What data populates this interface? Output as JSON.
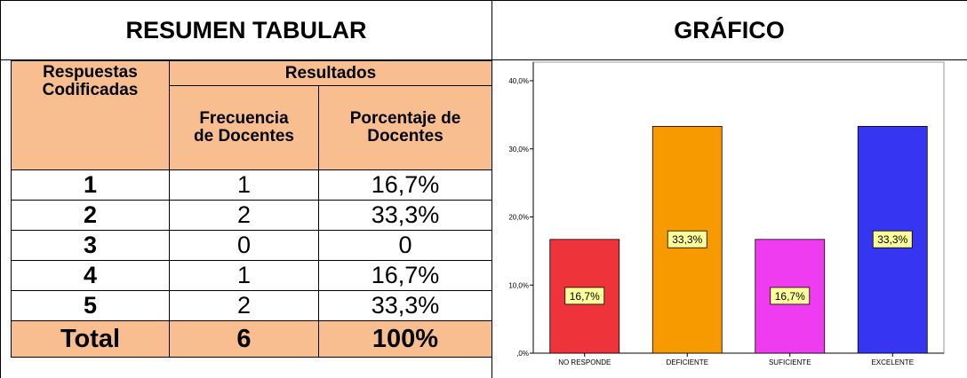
{
  "header": {
    "left": "RESUMEN TABULAR",
    "right": "GRÁFICO"
  },
  "table": {
    "header": [
      "Respuestas Codificadas",
      "Resultados",
      "Frecuencia de Docentes",
      "Porcentaje de Docentes"
    ],
    "rows": [
      [
        "1",
        "1",
        "16,7%"
      ],
      [
        "2",
        "2",
        "33,3%"
      ],
      [
        "3",
        "0",
        "0"
      ],
      [
        "4",
        "1",
        "16,7%"
      ],
      [
        "5",
        "2",
        "33,3%"
      ]
    ],
    "total": [
      "Total",
      "6",
      "100%"
    ]
  },
  "chart_data": {
    "type": "bar",
    "categories": [
      "NO RESPONDE",
      "DEFICIENTE",
      "SUFICIENTE",
      "EXCELENTE"
    ],
    "values": [
      16.7,
      33.3,
      16.7,
      33.3
    ],
    "value_labels": [
      "16,7%",
      "33,3%",
      "16,7%",
      "33,3%"
    ],
    "colors": [
      "#ee333b",
      "#f79a00",
      "#f03cf0",
      "#3535f2"
    ],
    "ylim": [
      0,
      40
    ],
    "yticks": [
      {
        "value": 0,
        "label": ",0%"
      },
      {
        "value": 10,
        "label": "10,0%"
      },
      {
        "value": 20,
        "label": "20,0%"
      },
      {
        "value": 30,
        "label": "30,0%"
      },
      {
        "value": 40,
        "label": "40,0%"
      }
    ],
    "grid": false
  }
}
